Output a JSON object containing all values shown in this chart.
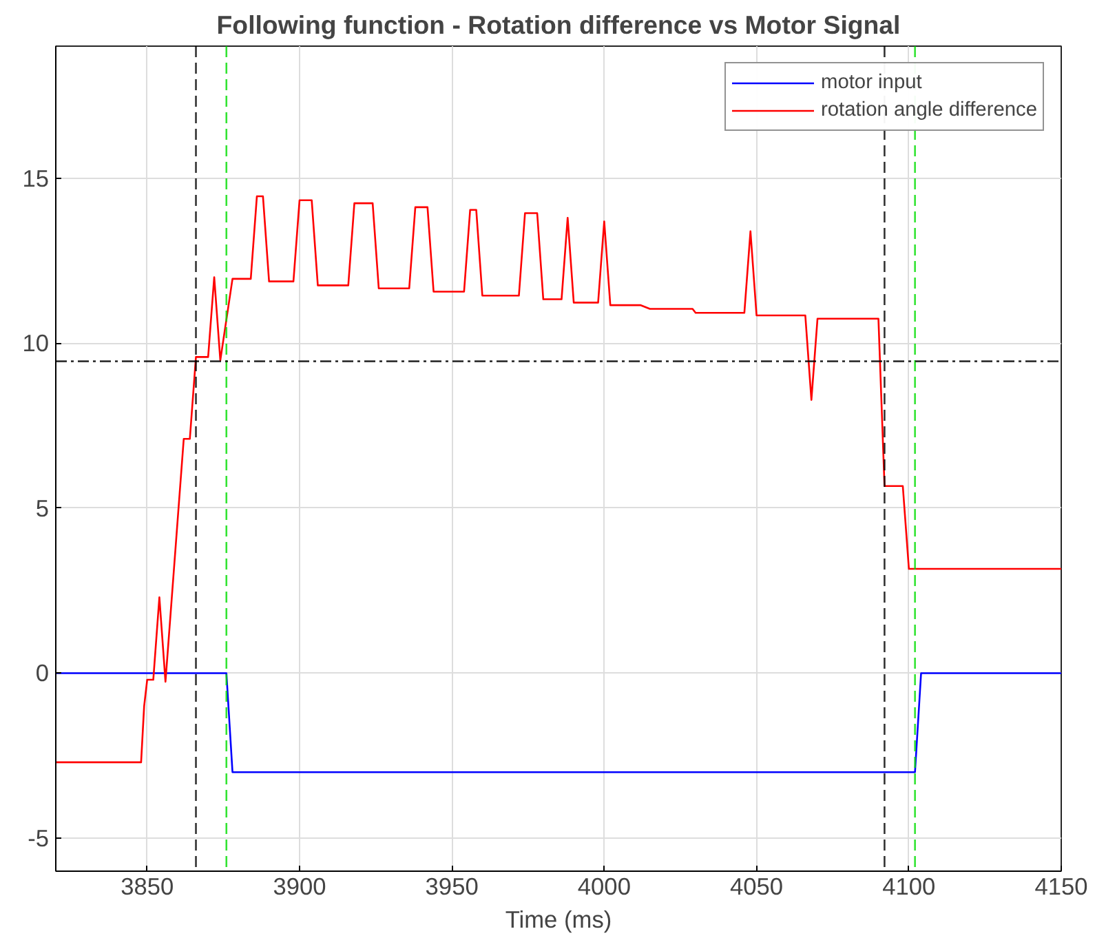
{
  "chart_data": {
    "type": "line",
    "title": "Following function - Rotation difference vs Motor Signal",
    "xlabel": "Time (ms)",
    "xlim": [
      3820,
      4150
    ],
    "ylim": [
      -6,
      19
    ],
    "xticks": [
      3850,
      3900,
      3950,
      4000,
      4050,
      4100,
      4150
    ],
    "yticks": [
      -5,
      0,
      5,
      10,
      15
    ],
    "grid": true,
    "legend": "top right",
    "line_style": "solid",
    "marker": "none",
    "series": [
      {
        "name": "motor input",
        "color": "#0000ff",
        "x": [
          3820,
          3876,
          3878,
          4102,
          4104,
          4150
        ],
        "values": [
          0,
          0,
          -3,
          -3,
          0,
          0
        ]
      },
      {
        "name": "rotation angle difference",
        "color": "#ff0000",
        "x": [
          3820,
          3848,
          3849,
          3850,
          3852,
          3854,
          3856,
          3862,
          3864,
          3866,
          3870,
          3872,
          3874,
          3878,
          3884,
          3886,
          3888,
          3890,
          3898,
          3900,
          3904,
          3906,
          3916,
          3918,
          3924,
          3926,
          3936,
          3938,
          3942,
          3944,
          3954,
          3956,
          3958,
          3960,
          3972,
          3974,
          3978,
          3980,
          3986,
          3988,
          3990,
          3998,
          4000,
          4002,
          4012,
          4015,
          4029,
          4030,
          4046,
          4048,
          4050,
          4066,
          4068,
          4070,
          4090,
          4092,
          4098,
          4100,
          4150
        ],
        "values": [
          -2.7,
          -2.7,
          -1.0,
          -0.2,
          -0.2,
          2.3,
          -0.26,
          7.1,
          7.1,
          9.58,
          9.58,
          12.0,
          9.48,
          11.95,
          11.95,
          14.45,
          14.45,
          11.87,
          11.87,
          14.33,
          14.33,
          11.75,
          11.75,
          14.24,
          14.24,
          11.66,
          11.66,
          14.12,
          14.12,
          11.56,
          11.56,
          14.04,
          14.04,
          11.44,
          11.44,
          13.94,
          13.94,
          11.33,
          11.33,
          13.8,
          11.23,
          11.23,
          13.69,
          11.15,
          11.15,
          11.04,
          11.04,
          10.92,
          10.92,
          13.39,
          10.84,
          10.84,
          8.28,
          10.74,
          10.74,
          5.67,
          5.67,
          3.16,
          3.16
        ]
      }
    ],
    "ref_lines": [
      {
        "axis": "x",
        "value": 3866,
        "color": "#000000",
        "line_style": "dashed"
      },
      {
        "axis": "x",
        "value": 3876,
        "color": "#00dd00",
        "line_style": "dashed"
      },
      {
        "axis": "x",
        "value": 4092,
        "color": "#000000",
        "line_style": "dashed"
      },
      {
        "axis": "x",
        "value": 4102,
        "color": "#00dd00",
        "line_style": "dashed"
      },
      {
        "axis": "y",
        "value": 9.45,
        "color": "#000000",
        "line_style": "dashdot"
      }
    ]
  }
}
